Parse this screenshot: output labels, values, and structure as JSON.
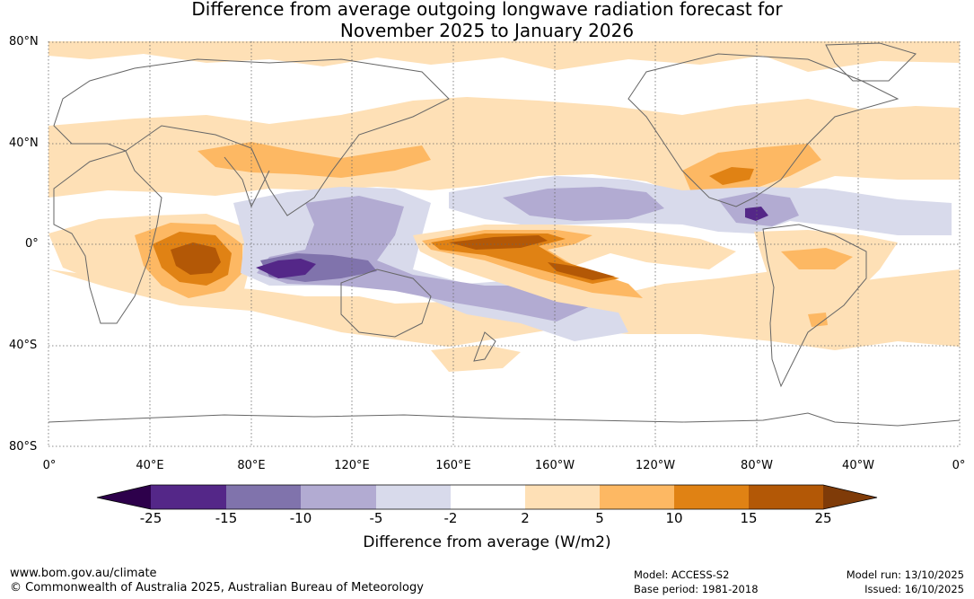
{
  "title": {
    "line1": "Difference from average outgoing longwave radiation forecast for",
    "line2": "November 2025 to January 2026"
  },
  "map": {
    "lat_labels": [
      "80°N",
      "40°N",
      "0°",
      "40°S",
      "80°S"
    ],
    "lon_labels": [
      "0°",
      "40°E",
      "80°E",
      "120°E",
      "160°E",
      "160°W",
      "120°W",
      "80°W",
      "40°W",
      "0°"
    ]
  },
  "colorbar": {
    "title": "Difference from average (W/m2)",
    "ticks": [
      "-25",
      "-15",
      "-10",
      "-5",
      "-2",
      "2",
      "5",
      "10",
      "15",
      "25"
    ],
    "colors": [
      "#2d004b",
      "#542788",
      "#8073ac",
      "#b2abd2",
      "#d8daeb",
      "#ffffff",
      "#fee0b6",
      "#fdb863",
      "#e08214",
      "#b35806",
      "#7f3b08"
    ]
  },
  "footer": {
    "url": "www.bom.gov.au/climate",
    "copyright": "© Commonwealth of Australia 2025, Australian Bureau of Meteorology",
    "model": "Model: ACCESS-S2",
    "base_period": "Base period: 1981-2018",
    "model_run": "Model run: 13/10/2025",
    "issued": "Issued: 16/10/2025"
  }
}
